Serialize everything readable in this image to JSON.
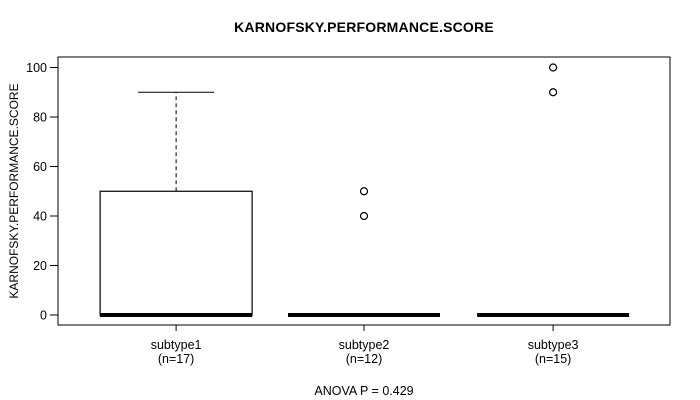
{
  "colors": {
    "stroke": "#000000",
    "box_fill": "#ffffff",
    "background": "#ffffff",
    "text": "#000000"
  },
  "chart_data": {
    "type": "boxplot",
    "title": "KARNOFSKY.PERFORMANCE.SCORE",
    "ylabel": "KARNOFSKY.PERFORMANCE.SCORE",
    "xlabel": "",
    "ylim": [
      0,
      100
    ],
    "yticks": [
      0,
      20,
      40,
      60,
      80,
      100
    ],
    "grid": false,
    "legend": null,
    "annotation": "ANOVA P = 0.429",
    "groups": [
      {
        "label": "subtype1",
        "sublabel": "(n=17)",
        "n": 17,
        "q1": 0,
        "median": 0,
        "q3": 50,
        "whisker_low": 0,
        "whisker_high": 90,
        "outliers": []
      },
      {
        "label": "subtype2",
        "sublabel": "(n=12)",
        "n": 12,
        "q1": 0,
        "median": 0,
        "q3": 0,
        "whisker_low": 0,
        "whisker_high": 0,
        "outliers": [
          40,
          50
        ]
      },
      {
        "label": "subtype3",
        "sublabel": "(n=15)",
        "n": 15,
        "q1": 0,
        "median": 0,
        "q3": 0,
        "whisker_low": 0,
        "whisker_high": 0,
        "outliers": [
          90,
          100
        ]
      }
    ]
  }
}
